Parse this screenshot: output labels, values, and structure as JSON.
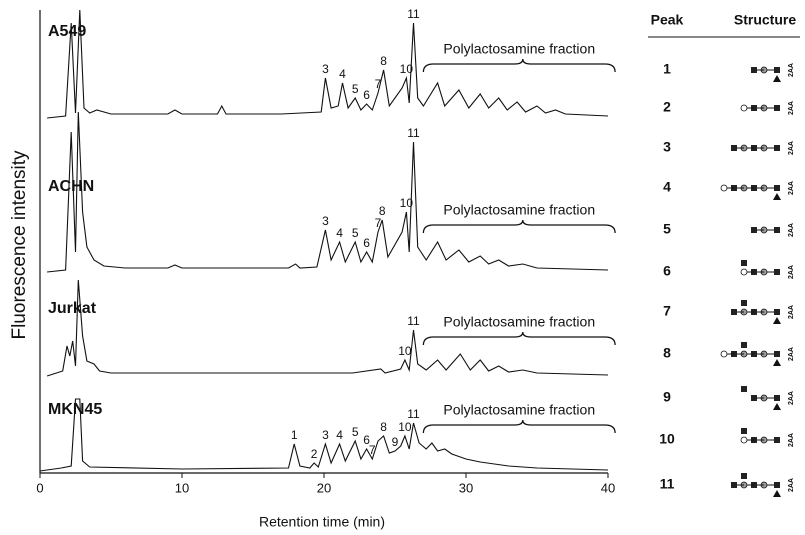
{
  "chart_data": {
    "type": "line",
    "xlabel": "Retention time (min)",
    "ylabel": "Fluorescence intensity",
    "xlim": [
      0,
      40
    ],
    "xticks": [
      0,
      10,
      20,
      30,
      40
    ],
    "color": "#111111",
    "panels": [
      {
        "name": "A549",
        "annotation": "Polylactosamine fraction",
        "x": [
          0.5,
          1.8,
          2.2,
          2.5,
          2.8,
          3.1,
          3.5,
          4,
          5,
          9,
          9.5,
          10,
          12.5,
          12.8,
          13.1,
          17,
          19.8,
          20.1,
          20.5,
          21,
          21.3,
          21.7,
          22.2,
          22.6,
          23,
          23.4,
          23.8,
          24.2,
          24.6,
          25.5,
          25.8,
          26.0,
          26.3,
          26.6,
          27,
          28,
          28.5,
          29.5,
          30.2,
          31,
          31.6,
          32.3,
          32.9,
          33.6,
          34.2,
          35,
          35.6,
          36.3,
          37,
          40
        ],
        "values": [
          0,
          2,
          95,
          5,
          108,
          10,
          5,
          8,
          4,
          4,
          8,
          4,
          4,
          12,
          4,
          4,
          6,
          40,
          10,
          12,
          35,
          10,
          20,
          8,
          14,
          8,
          25,
          48,
          12,
          30,
          40,
          15,
          95,
          20,
          12,
          35,
          12,
          28,
          10,
          24,
          10,
          20,
          8,
          16,
          6,
          12,
          5,
          8,
          4,
          2
        ],
        "peaks": [
          {
            "label": "3",
            "x": 20.1
          },
          {
            "label": "4",
            "x": 21.3
          },
          {
            "label": "5",
            "x": 22.2
          },
          {
            "label": "6",
            "x": 23.0
          },
          {
            "label": "7",
            "x": 23.8
          },
          {
            "label": "8",
            "x": 24.2
          },
          {
            "label": "10",
            "x": 25.8
          },
          {
            "label": "11",
            "x": 26.3
          }
        ]
      },
      {
        "name": "ACHN",
        "annotation": "Polylactosamine fraction",
        "x": [
          0.5,
          1.8,
          2.2,
          2.5,
          2.7,
          3,
          3.3,
          3.8,
          4.5,
          6,
          9,
          9.5,
          10,
          17.5,
          18,
          18.3,
          19.5,
          20.1,
          20.5,
          21.1,
          21.5,
          22.2,
          22.6,
          23,
          23.4,
          23.8,
          24.1,
          24.5,
          25.5,
          25.8,
          26.0,
          26.3,
          26.6,
          27.2,
          28,
          28.6,
          29.5,
          30.2,
          31,
          31.6,
          32.3,
          33,
          34,
          35,
          40
        ],
        "values": [
          0,
          2,
          140,
          20,
          160,
          60,
          25,
          12,
          6,
          4,
          4,
          7,
          4,
          4,
          8,
          4,
          5,
          42,
          12,
          30,
          10,
          30,
          10,
          20,
          10,
          40,
          52,
          15,
          40,
          60,
          20,
          130,
          25,
          12,
          30,
          12,
          22,
          10,
          16,
          8,
          12,
          6,
          8,
          4,
          2
        ],
        "peaks": [
          {
            "label": "3",
            "x": 20.1
          },
          {
            "label": "4",
            "x": 21.1
          },
          {
            "label": "5",
            "x": 22.2
          },
          {
            "label": "6",
            "x": 23.0
          },
          {
            "label": "7",
            "x": 23.8
          },
          {
            "label": "8",
            "x": 24.1
          },
          {
            "label": "10",
            "x": 25.8
          },
          {
            "label": "11",
            "x": 26.3
          }
        ]
      },
      {
        "name": "Jurkat",
        "annotation": "Polylactosamine fraction",
        "x": [
          0.5,
          1.6,
          1.9,
          2.1,
          2.3,
          2.5,
          2.7,
          3.0,
          3.3,
          3.8,
          4.2,
          5,
          10,
          17,
          22,
          24,
          24.3,
          25.4,
          25.7,
          26,
          26.3,
          26.6,
          27.2,
          28,
          28.6,
          29.6,
          30.3,
          31,
          31.6,
          32.3,
          33,
          34,
          35,
          40
        ],
        "values": [
          0,
          5,
          30,
          20,
          35,
          10,
          96,
          40,
          15,
          12,
          5,
          3,
          3,
          3,
          3,
          7,
          3,
          7,
          16,
          6,
          46,
          12,
          6,
          16,
          6,
          22,
          6,
          16,
          5,
          10,
          4,
          6,
          3,
          1
        ],
        "peaks": [
          {
            "label": "10",
            "x": 25.7
          },
          {
            "label": "11",
            "x": 26.3
          }
        ]
      },
      {
        "name": "MKN45",
        "annotation": "Polylactosamine fraction",
        "x": [
          0,
          1.5,
          2.2,
          2.5,
          2.8,
          3,
          3.5,
          10,
          17.5,
          17.9,
          18.3,
          19,
          19.3,
          19.6,
          20.1,
          20.5,
          21.1,
          21.5,
          22.2,
          22.6,
          23,
          23.4,
          23.8,
          24.2,
          24.6,
          25,
          25.4,
          25.7,
          26,
          26.3,
          26.7,
          27.2,
          27.6,
          28,
          28.5,
          29,
          30,
          31,
          33,
          35,
          40
        ],
        "values": [
          0,
          3,
          5,
          72,
          72,
          10,
          4,
          2,
          3,
          27,
          5,
          3,
          8,
          4,
          27,
          8,
          27,
          10,
          30,
          12,
          22,
          12,
          30,
          35,
          18,
          20,
          25,
          35,
          22,
          48,
          28,
          22,
          28,
          20,
          22,
          17,
          12,
          9,
          5,
          3,
          1
        ],
        "peaks": [
          {
            "label": "1",
            "x": 17.9
          },
          {
            "label": "2",
            "x": 19.3
          },
          {
            "label": "3",
            "x": 20.1
          },
          {
            "label": "4",
            "x": 21.1
          },
          {
            "label": "5",
            "x": 22.2
          },
          {
            "label": "6",
            "x": 23.0
          },
          {
            "label": "7",
            "x": 23.4
          },
          {
            "label": "8",
            "x": 24.2
          },
          {
            "label": "9",
            "x": 25.0
          },
          {
            "label": "10",
            "x": 25.7
          },
          {
            "label": "11",
            "x": 26.3
          }
        ]
      }
    ]
  },
  "table": {
    "headers": [
      "Peak",
      "Structure"
    ],
    "rows": [
      [
        "1",
        "2AA"
      ],
      [
        "2",
        "2AA"
      ],
      [
        "3",
        "2AA"
      ],
      [
        "4",
        "2AA"
      ],
      [
        "5",
        "2AA"
      ],
      [
        "6",
        "2AA"
      ],
      [
        "7",
        "2AA"
      ],
      [
        "8",
        "2AA"
      ],
      [
        "9",
        "2AA"
      ],
      [
        "10",
        "2AA"
      ],
      [
        "11",
        "2AA"
      ]
    ]
  }
}
